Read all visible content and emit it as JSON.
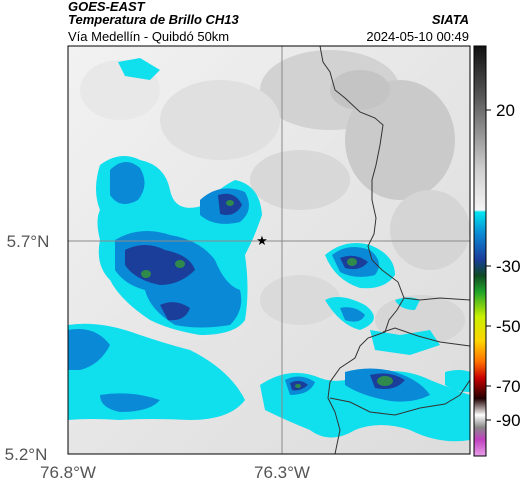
{
  "header": {
    "title1": "GOES-EAST",
    "title2": "Temperatura de Brillo CH13",
    "subtitle": "Vía Medellín - Quibdó 50km",
    "org": "SIATA",
    "datetime": "2024-05-10 00:49"
  },
  "map": {
    "type": "satellite-brightness-temperature",
    "lat_labels": [
      "5.7°N",
      "5.2°N"
    ],
    "lon_labels": [
      "76.8°W",
      "76.3°W"
    ],
    "lat_values": [
      5.7,
      5.2
    ],
    "lon_values": [
      -76.8,
      -76.3
    ],
    "marker": {
      "symbol": "star",
      "lat": 5.7,
      "lon": -76.33
    },
    "gridlines": true,
    "borders": true
  },
  "colorbar": {
    "ticks": [
      "20",
      "-30",
      "-50",
      "-70",
      "-90"
    ],
    "tick_values": [
      20,
      -30,
      -50,
      -70,
      -90
    ],
    "range": [
      -95,
      40
    ]
  },
  "colors": {
    "cloud_warm": "#eeeeee",
    "cloud_dark": "#c6c6c6",
    "cyan": "#10dfed",
    "blue": "#0a8ad6",
    "deep_blue": "#1a3e9a",
    "green": "#2f8a4c"
  }
}
